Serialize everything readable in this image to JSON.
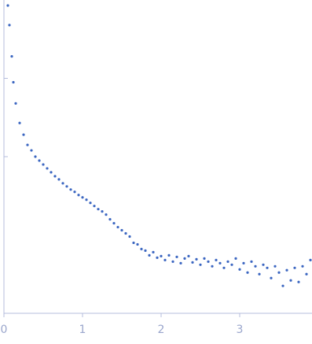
{
  "chart_data": {
    "type": "scatter",
    "color": "#3b66c1",
    "x": [
      0.05,
      0.07,
      0.1,
      0.12,
      0.15,
      0.2,
      0.25,
      0.3,
      0.35,
      0.4,
      0.45,
      0.5,
      0.55,
      0.6,
      0.65,
      0.7,
      0.75,
      0.8,
      0.85,
      0.9,
      0.95,
      1.0,
      1.05,
      1.1,
      1.15,
      1.2,
      1.25,
      1.3,
      1.35,
      1.4,
      1.45,
      1.5,
      1.55,
      1.6,
      1.65,
      1.7,
      1.75,
      1.8,
      1.85,
      1.9,
      1.95,
      2.0,
      2.05,
      2.1,
      2.15,
      2.2,
      2.25,
      2.3,
      2.35,
      2.4,
      2.45,
      2.5,
      2.55,
      2.6,
      2.65,
      2.7,
      2.75,
      2.8,
      2.85,
      2.9,
      2.95,
      3.0,
      3.05,
      3.1,
      3.15,
      3.2,
      3.25,
      3.3,
      3.35,
      3.4,
      3.45,
      3.5,
      3.55,
      3.6,
      3.65,
      3.7,
      3.75,
      3.8,
      3.85,
      3.9
    ],
    "values": [
      3.93,
      3.68,
      3.28,
      2.95,
      2.68,
      2.43,
      2.28,
      2.15,
      2.08,
      2.0,
      1.95,
      1.9,
      1.85,
      1.8,
      1.75,
      1.71,
      1.66,
      1.62,
      1.58,
      1.55,
      1.51,
      1.48,
      1.45,
      1.41,
      1.37,
      1.33,
      1.3,
      1.26,
      1.2,
      1.15,
      1.1,
      1.06,
      1.02,
      0.98,
      0.9,
      0.88,
      0.82,
      0.8,
      0.74,
      0.78,
      0.71,
      0.73,
      0.68,
      0.74,
      0.66,
      0.72,
      0.64,
      0.7,
      0.73,
      0.65,
      0.69,
      0.62,
      0.7,
      0.66,
      0.6,
      0.68,
      0.64,
      0.58,
      0.66,
      0.62,
      0.7,
      0.56,
      0.64,
      0.52,
      0.66,
      0.6,
      0.5,
      0.62,
      0.58,
      0.45,
      0.6,
      0.52,
      0.35,
      0.55,
      0.42,
      0.58,
      0.4,
      0.6,
      0.5,
      0.68
    ],
    "xlim": [
      0,
      3.92
    ],
    "xticks": [
      0,
      1,
      2,
      3
    ],
    "ylim": [
      0,
      4
    ],
    "yticks": [
      2,
      3
    ]
  }
}
